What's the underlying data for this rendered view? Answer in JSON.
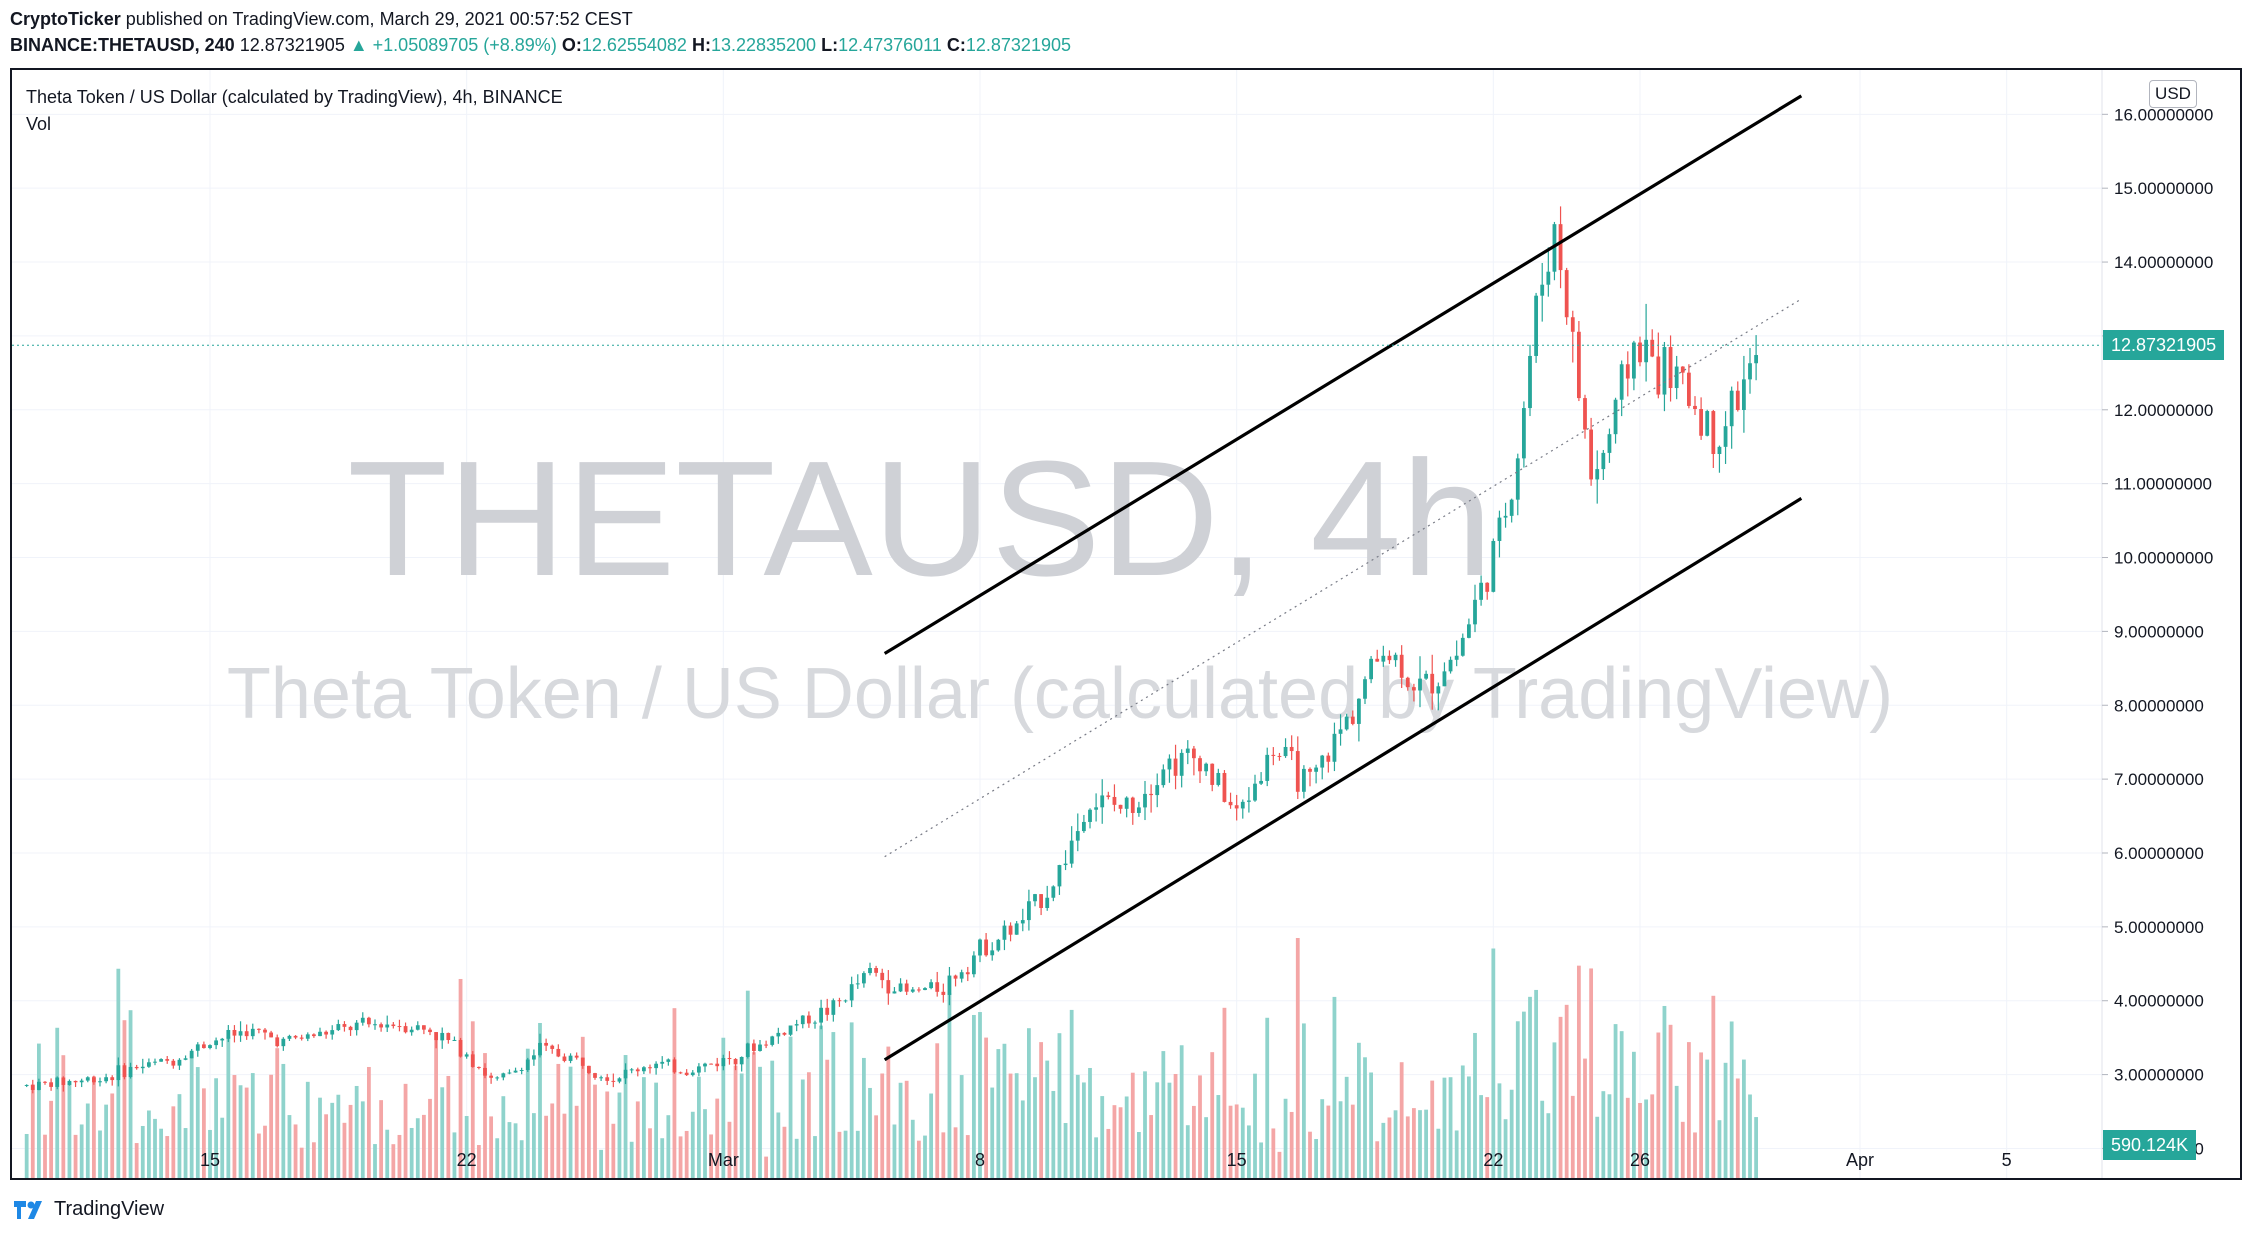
{
  "header": {
    "publisher": "CryptoTicker",
    "published_text": "published on TradingView.com, March 29, 2021 00:57:52 CEST",
    "symbol": "BINANCE:THETAUSD, 240",
    "last": "12.87321905",
    "change": "▲ +1.05089705 (+8.89%)",
    "o_label": "O:",
    "o": "12.62554082",
    "h_label": "H:",
    "h": "13.22835200",
    "l_label": "L:",
    "l": "12.47376011",
    "c_label": "C:",
    "c": "12.87321905"
  },
  "legend": {
    "title": "Theta Token / US Dollar (calculated by TradingView), 4h, BINANCE",
    "vol": "Vol"
  },
  "watermark": {
    "line1": "THETAUSD, 4h",
    "line2": "Theta Token / US Dollar (calculated by TradingView)"
  },
  "axis": {
    "currency": "USD",
    "last_price_tag": "12.87321905",
    "volume_tag": "590.124K"
  },
  "footer": {
    "brand": "TradingView"
  },
  "colors": {
    "up": "#26a69a",
    "down": "#ef5350",
    "vol_up": "#8fd3cc",
    "vol_down": "#f4a6a6"
  },
  "chart_data": {
    "type": "candlestick",
    "title": "Theta Token / US Dollar (calculated by TradingView), 4h, BINANCE",
    "interval": "4h",
    "y_axis": {
      "side": "right",
      "ticks": [
        2,
        3,
        4,
        5,
        6,
        7,
        8,
        9,
        10,
        11,
        12,
        13,
        14,
        15,
        16
      ],
      "ylim": [
        1.6,
        16.6
      ],
      "currency": "USD"
    },
    "x_axis": {
      "ticks": [
        {
          "label": "15",
          "day": 15
        },
        {
          "label": "22",
          "day": 22
        },
        {
          "label": "Mar",
          "day": 29
        },
        {
          "label": "8",
          "day": 36
        },
        {
          "label": "15",
          "day": 43
        },
        {
          "label": "22",
          "day": 50
        },
        {
          "label": "26",
          "day": 54
        },
        {
          "label": "Apr",
          "day": 60
        },
        {
          "label": "5",
          "day": 64
        }
      ],
      "range_days": [
        9.6,
        66.6
      ],
      "note": "day counted from Feb 0, 2021 (Mar 1 = day 29)"
    },
    "grid": true,
    "close_path": [
      [
        10,
        2.85
      ],
      [
        12,
        2.95
      ],
      [
        13,
        3.1
      ],
      [
        14,
        3.2
      ],
      [
        15,
        3.45
      ],
      [
        16,
        3.6
      ],
      [
        17,
        3.45
      ],
      [
        18,
        3.55
      ],
      [
        19,
        3.65
      ],
      [
        20,
        3.7
      ],
      [
        21,
        3.6
      ],
      [
        22,
        3.3
      ],
      [
        22.7,
        2.9
      ],
      [
        23.2,
        3.0
      ],
      [
        24,
        3.35
      ],
      [
        25,
        3.2
      ],
      [
        26,
        2.95
      ],
      [
        27,
        3.15
      ],
      [
        28,
        3.05
      ],
      [
        29,
        3.2
      ],
      [
        30,
        3.4
      ],
      [
        31,
        3.7
      ],
      [
        32,
        3.9
      ],
      [
        33,
        4.4
      ],
      [
        34,
        4.1
      ],
      [
        35,
        4.2
      ],
      [
        36,
        4.7
      ],
      [
        37,
        5.0
      ],
      [
        38,
        5.6
      ],
      [
        39,
        6.7
      ],
      [
        40,
        6.6
      ],
      [
        41,
        7.2
      ],
      [
        42,
        7.3
      ],
      [
        43,
        6.5
      ],
      [
        44,
        7.4
      ],
      [
        45,
        6.9
      ],
      [
        46,
        7.8
      ],
      [
        47,
        8.8
      ],
      [
        48,
        8.2
      ],
      [
        49,
        8.7
      ],
      [
        50,
        10.0
      ],
      [
        50.6,
        11.2
      ],
      [
        51.2,
        13.5
      ],
      [
        51.7,
        14.5
      ],
      [
        52.2,
        12.7
      ],
      [
        52.7,
        11.0
      ],
      [
        53.2,
        11.7
      ],
      [
        53.8,
        12.9
      ],
      [
        54.5,
        12.6
      ],
      [
        55.2,
        12.3
      ],
      [
        56,
        11.6
      ],
      [
        56.8,
        12.3
      ],
      [
        57.3,
        12.87
      ]
    ],
    "volume_ticks_note": "volume histogram pane at bottom, last value 590.124K",
    "annotations": [
      {
        "type": "trendline",
        "label": "upper channel",
        "from": [
          33.4,
          8.7
        ],
        "to": [
          58.4,
          16.25
        ]
      },
      {
        "type": "trendline",
        "label": "lower channel",
        "from": [
          33.4,
          3.2
        ],
        "to": [
          58.4,
          10.8
        ]
      },
      {
        "type": "trendline",
        "style": "dotted",
        "label": "mid channel",
        "from": [
          33.4,
          5.95
        ],
        "to": [
          58.4,
          13.5
        ]
      }
    ],
    "last_price": 12.87321905,
    "last_volume": "590.124K"
  }
}
